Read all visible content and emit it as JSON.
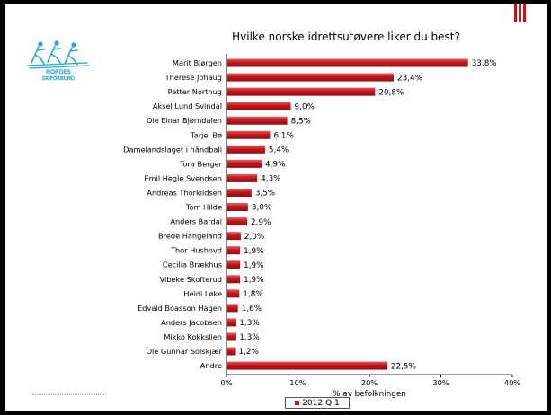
{
  "colors": {
    "bar": "#c4161c",
    "bar_highlight": "#e85a5e",
    "axis": "#000000",
    "accent": "#c4161c"
  },
  "logo": {
    "icon": "skiers-logo-icon",
    "text_line1": "NORGES",
    "text_line2": "SKIFORBUND"
  },
  "chart_data": {
    "type": "bar",
    "orientation": "horizontal",
    "title": "Hvilke norske idrettsutøvere liker du best?",
    "xlabel": "% av befolkningen",
    "ylabel": "",
    "xlim": [
      0,
      40
    ],
    "ticks": [
      "0%",
      "10%",
      "20%",
      "30%",
      "40%"
    ],
    "tick_values": [
      0,
      10,
      20,
      30,
      40
    ],
    "grid": false,
    "legend_position": "bottom",
    "categories": [
      "Marit Bjørgen",
      "Therese Johaug",
      "Petter Northug",
      "Aksel Lund Svindal",
      "Ole Einar Bjørndalen",
      "Tarjei Bø",
      "Damelandslaget i håndball",
      "Tora Berger",
      "Emil Hegle Svendsen",
      "Andreas Thorkildsen",
      "Tom Hilde",
      "Anders Bardal",
      "Brede Hangeland",
      "Thor Hushovd",
      "Cecilia Brækhus",
      "Vibeke Skofterud",
      "Heidi Løke",
      "Edvald Boasson Hagen",
      "Anders Jacobsen",
      "Mikko Kokkslien",
      "Ole Gunnar Solskjær",
      "Andre"
    ],
    "series": [
      {
        "name": "2012:Q 1",
        "values": [
          33.8,
          23.4,
          20.8,
          9.0,
          8.5,
          6.1,
          5.4,
          4.9,
          4.3,
          3.5,
          3.0,
          2.9,
          2.0,
          1.9,
          1.9,
          1.9,
          1.8,
          1.6,
          1.3,
          1.3,
          1.2,
          22.5
        ],
        "labels": [
          "33,8%",
          "23,4%",
          "20,8%",
          "9,0%",
          "8,5%",
          "6,1%",
          "5,4%",
          "4,9%",
          "4,3%",
          "3,5%",
          "3,0%",
          "2,9%",
          "2,0%",
          "1,9%",
          "1,9%",
          "1,9%",
          "1,8%",
          "1,6%",
          "1,3%",
          "1,3%",
          "1,2%",
          "22,5%"
        ]
      }
    ]
  }
}
